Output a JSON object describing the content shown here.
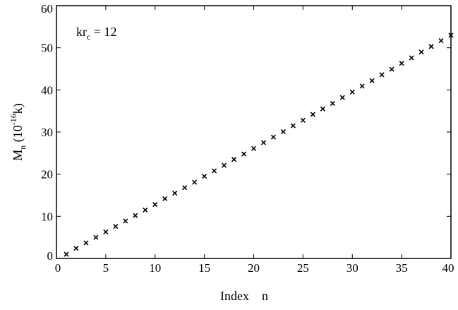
{
  "chart_data": {
    "type": "scatter",
    "title": "",
    "xlabel": "Index    n",
    "ylabel": {
      "base": "M",
      "sub": "n",
      "mid": " (10",
      "sup": "-16",
      "tail": "k)"
    },
    "annotation": {
      "base": "kr",
      "sub": "c",
      "tail": " = 12"
    },
    "xlim": [
      0,
      40
    ],
    "ylim": [
      0,
      60
    ],
    "xticks": [
      0,
      5,
      10,
      15,
      20,
      25,
      30,
      35,
      40
    ],
    "yticks": [
      0,
      10,
      20,
      30,
      40,
      50,
      60
    ],
    "grid": false,
    "marker": "x",
    "series": [
      {
        "x": [
          1,
          2,
          3,
          4,
          5,
          6,
          7,
          8,
          9,
          10,
          11,
          12,
          13,
          14,
          15,
          16,
          17,
          18,
          19,
          20,
          21,
          22,
          23,
          24,
          25,
          26,
          27,
          28,
          29,
          30,
          31,
          32,
          33,
          34,
          35,
          36,
          37,
          38,
          39,
          40
        ],
        "y": [
          1.0,
          2.4,
          3.7,
          5.0,
          6.3,
          7.6,
          8.9,
          10.2,
          11.5,
          12.8,
          14.2,
          15.5,
          16.8,
          18.1,
          19.5,
          20.8,
          22.1,
          23.5,
          24.8,
          26.1,
          27.5,
          28.8,
          30.1,
          31.5,
          32.8,
          34.2,
          35.5,
          36.8,
          38.2,
          39.5,
          40.9,
          42.2,
          43.6,
          44.9,
          46.3,
          47.6,
          49.0,
          50.3,
          51.7,
          53.0
        ]
      }
    ]
  }
}
